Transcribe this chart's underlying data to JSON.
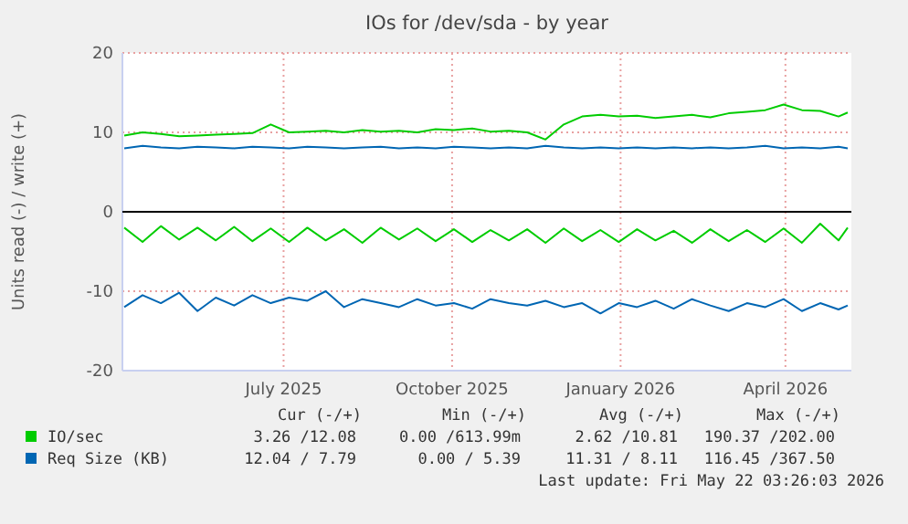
{
  "chart_data": {
    "type": "line",
    "title": "IOs for /dev/sda - by year",
    "ylabel": "Units read (-) / write (+)",
    "x": [
      "2025-04-05",
      "2025-04-15",
      "2025-04-25",
      "2025-05-05",
      "2025-05-15",
      "2025-05-25",
      "2025-06-04",
      "2025-06-14",
      "2025-06-24",
      "2025-07-04",
      "2025-07-14",
      "2025-07-24",
      "2025-08-03",
      "2025-08-13",
      "2025-08-23",
      "2025-09-02",
      "2025-09-12",
      "2025-09-22",
      "2025-10-02",
      "2025-10-12",
      "2025-10-22",
      "2025-11-01",
      "2025-11-11",
      "2025-11-21",
      "2025-12-01",
      "2025-12-11",
      "2025-12-21",
      "2025-12-31",
      "2026-01-10",
      "2026-01-20",
      "2026-01-30",
      "2026-02-09",
      "2026-02-19",
      "2026-03-01",
      "2026-03-11",
      "2026-03-21",
      "2026-03-31",
      "2026-04-10",
      "2026-04-20",
      "2026-04-30",
      "2026-05-05"
    ],
    "series": [
      {
        "name": "IO/sec",
        "color": "#00cc00",
        "values": [
          9.6,
          10.0,
          9.8,
          9.5,
          9.6,
          9.7,
          9.8,
          9.9,
          11.0,
          10.0,
          10.1,
          10.2,
          10.0,
          10.3,
          10.1,
          10.2,
          10.0,
          10.4,
          10.3,
          10.5,
          10.1,
          10.2,
          10.0,
          9.1,
          11.0,
          12.0,
          12.2,
          12.0,
          12.1,
          11.8,
          12.0,
          12.2,
          11.9,
          12.4,
          12.6,
          12.8,
          13.5,
          12.8,
          12.7,
          12.0,
          12.5
        ]
      },
      {
        "color": "#00cc00",
        "values": [
          -2.0,
          -3.8,
          -1.8,
          -3.5,
          -2.0,
          -3.6,
          -1.9,
          -3.7,
          -2.1,
          -3.8,
          -2.0,
          -3.6,
          -2.2,
          -3.9,
          -2.0,
          -3.5,
          -2.1,
          -3.7,
          -2.2,
          -3.8,
          -2.3,
          -3.6,
          -2.2,
          -3.9,
          -2.1,
          -3.7,
          -2.3,
          -3.8,
          -2.2,
          -3.6,
          -2.4,
          -3.9,
          -2.2,
          -3.7,
          -2.3,
          -3.8,
          -2.1,
          -3.9,
          -1.5,
          -3.6,
          -2.0
        ]
      },
      {
        "name": "Req Size (KB)",
        "color": "#0066b3",
        "values": [
          8.0,
          8.3,
          8.1,
          8.0,
          8.2,
          8.1,
          8.0,
          8.2,
          8.1,
          8.0,
          8.2,
          8.1,
          8.0,
          8.1,
          8.2,
          8.0,
          8.1,
          8.0,
          8.2,
          8.1,
          8.0,
          8.1,
          8.0,
          8.3,
          8.1,
          8.0,
          8.1,
          8.0,
          8.1,
          8.0,
          8.1,
          8.0,
          8.1,
          8.0,
          8.1,
          8.3,
          8.0,
          8.1,
          8.0,
          8.2,
          8.0
        ]
      },
      {
        "color": "#0066b3",
        "values": [
          -12.0,
          -10.5,
          -11.5,
          -10.2,
          -12.5,
          -10.8,
          -11.8,
          -10.5,
          -11.5,
          -10.8,
          -11.2,
          -10.0,
          -12.0,
          -11.0,
          -11.5,
          -12.0,
          -11.0,
          -11.8,
          -11.5,
          -12.2,
          -11.0,
          -11.5,
          -11.8,
          -11.2,
          -12.0,
          -11.5,
          -12.8,
          -11.5,
          -12.0,
          -11.2,
          -12.2,
          -11.0,
          -11.8,
          -12.5,
          -11.5,
          -12.0,
          -11.0,
          -12.5,
          -11.5,
          -12.3,
          -11.8
        ]
      }
    ],
    "xlim": [
      "2025-04-04",
      "2026-05-07"
    ],
    "xticks": [
      {
        "value": "2025-07-01",
        "label": "July 2025"
      },
      {
        "value": "2025-10-01",
        "label": "October 2025"
      },
      {
        "value": "2026-01-01",
        "label": "January 2026"
      },
      {
        "value": "2026-04-01",
        "label": "April 2026"
      }
    ],
    "ylim": [
      -20,
      20
    ],
    "yticks": [
      -20,
      -10,
      0,
      10,
      20
    ],
    "grid": true,
    "legend": "bottom",
    "annotations": [
      "Cur (-/+)",
      "Min (-/+)",
      "Avg (-/+)",
      "Max (-/+)",
      "3.26 /12.08",
      "0.00 /613.99m",
      "2.62 /10.81",
      "190.37 /202.00",
      "12.04 / 7.79",
      "0.00 / 5.39",
      "11.31 / 8.11",
      "116.45 /367.50",
      "Last update: Fri May 22 03:26:03 2026"
    ]
  }
}
